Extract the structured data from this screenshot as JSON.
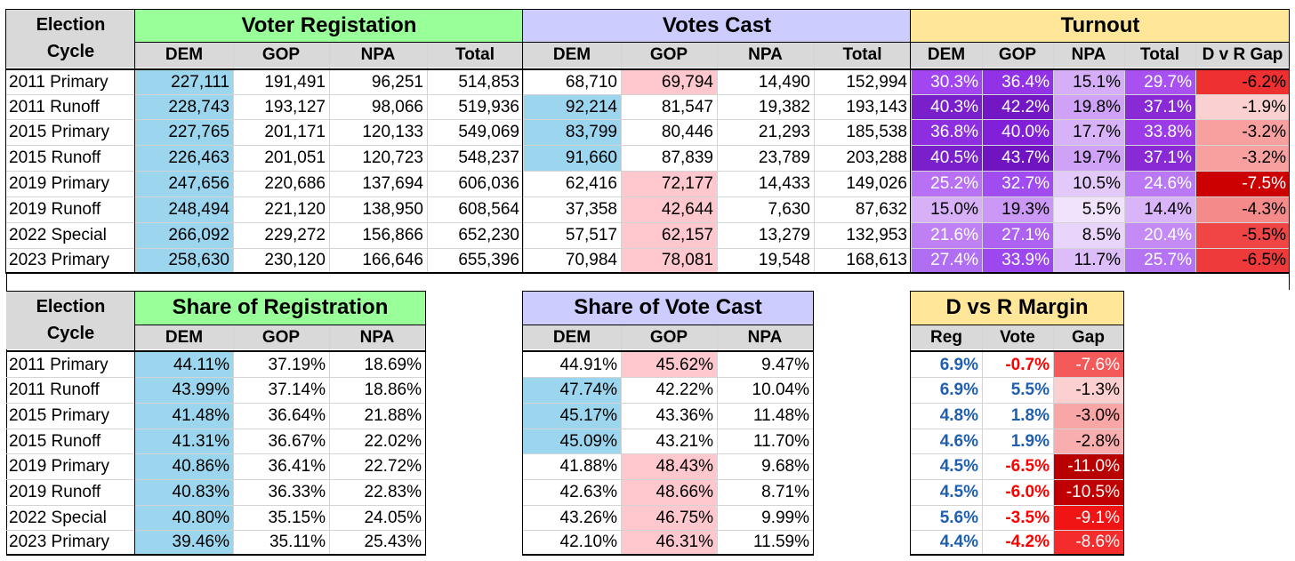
{
  "top": {
    "header_election": [
      "Election",
      "Cycle"
    ],
    "groups": [
      {
        "title": "Voter Registation",
        "color": "#99ff99",
        "cols": [
          "DEM",
          "GOP",
          "NPA",
          "Total"
        ]
      },
      {
        "title": "Votes Cast",
        "color": "#ccccff",
        "cols": [
          "DEM",
          "GOP",
          "NPA",
          "Total"
        ]
      },
      {
        "title": "Turnout",
        "color": "#ffe699",
        "cols": [
          "DEM",
          "GOP",
          "NPA",
          "Total",
          "D v R Gap"
        ]
      }
    ],
    "rows": [
      {
        "label": "2011 Primary",
        "reg": [
          "227,111",
          "191,491",
          "96,251",
          "514,853"
        ],
        "votes": [
          "68,710",
          "69,794",
          "14,490",
          "152,994"
        ],
        "turnout": [
          "30.3%",
          "36.4%",
          "15.1%",
          "29.7%",
          "-6.2%"
        ]
      },
      {
        "label": "2011 Runoff",
        "reg": [
          "228,743",
          "193,127",
          "98,066",
          "519,936"
        ],
        "votes": [
          "92,214",
          "81,547",
          "19,382",
          "193,143"
        ],
        "turnout": [
          "40.3%",
          "42.2%",
          "19.8%",
          "37.1%",
          "-1.9%"
        ]
      },
      {
        "label": "2015 Primary",
        "reg": [
          "227,765",
          "201,171",
          "120,133",
          "549,069"
        ],
        "votes": [
          "83,799",
          "80,446",
          "21,293",
          "185,538"
        ],
        "turnout": [
          "36.8%",
          "40.0%",
          "17.7%",
          "33.8%",
          "-3.2%"
        ]
      },
      {
        "label": "2015 Runoff",
        "reg": [
          "226,463",
          "201,051",
          "120,723",
          "548,237"
        ],
        "votes": [
          "91,660",
          "87,839",
          "23,789",
          "203,288"
        ],
        "turnout": [
          "40.5%",
          "43.7%",
          "19.7%",
          "37.1%",
          "-3.2%"
        ]
      },
      {
        "label": "2019 Primary",
        "reg": [
          "247,656",
          "220,686",
          "137,694",
          "606,036"
        ],
        "votes": [
          "62,416",
          "72,177",
          "14,433",
          "149,026"
        ],
        "turnout": [
          "25.2%",
          "32.7%",
          "10.5%",
          "24.6%",
          "-7.5%"
        ]
      },
      {
        "label": "2019 Runoff",
        "reg": [
          "248,494",
          "221,120",
          "138,950",
          "608,564"
        ],
        "votes": [
          "37,358",
          "42,644",
          "7,630",
          "87,632"
        ],
        "turnout": [
          "15.0%",
          "19.3%",
          "5.5%",
          "14.4%",
          "-4.3%"
        ]
      },
      {
        "label": "2022 Special",
        "reg": [
          "266,092",
          "229,272",
          "156,866",
          "652,230"
        ],
        "votes": [
          "57,517",
          "62,157",
          "13,279",
          "132,953"
        ],
        "turnout": [
          "21.6%",
          "27.1%",
          "8.5%",
          "20.4%",
          "-5.5%"
        ]
      },
      {
        "label": "2023 Primary",
        "reg": [
          "258,630",
          "230,120",
          "166,646",
          "655,396"
        ],
        "votes": [
          "70,984",
          "78,081",
          "19,548",
          "168,613"
        ],
        "turnout": [
          "27.4%",
          "33.9%",
          "11.7%",
          "25.7%",
          "-6.5%"
        ]
      }
    ],
    "reg_dem_bg": "#9bd5ee",
    "votes_highlight": [
      [
        "pink",
        ""
      ],
      [
        "blue",
        ""
      ],
      [
        "blue",
        ""
      ],
      [
        "blue",
        ""
      ],
      [
        "pink",
        ""
      ],
      [
        "pink",
        ""
      ],
      [
        "pink",
        ""
      ],
      [
        "pink",
        ""
      ]
    ],
    "turnout_bg": [
      [
        "#a146f0",
        "#9232e6",
        "#d6aef8",
        "#a950f0",
        "#ef3030"
      ],
      [
        "#7a1fcc",
        "#7317c5",
        "#cfa2f7",
        "#8a2ad6",
        "#fbd0d0"
      ],
      [
        "#8d2fe0",
        "#821fd8",
        "#d8b2f8",
        "#9b3ae6",
        "#f8a0a0"
      ],
      [
        "#7a1fcc",
        "#6f14c0",
        "#cfa2f7",
        "#8a2ad6",
        "#f8a0a0"
      ],
      [
        "#b870f4",
        "#a04cf0",
        "#e3c9fa",
        "#bb78f4",
        "#cc0000"
      ],
      [
        "#d8b0f8",
        "#cb98f6",
        "#f1e3fc",
        "#dab4f8",
        "#f58a8a"
      ],
      [
        "#bf80f5",
        "#ae62f2",
        "#e9d4fb",
        "#c48af6",
        "#ef4545"
      ],
      [
        "#b06ef3",
        "#9d48ef",
        "#dcbcf9",
        "#b574f4",
        "#ee3a3a"
      ]
    ]
  },
  "bottom": {
    "share_reg": {
      "title": "Share of Registration",
      "color": "#99ff99",
      "cols": [
        "DEM",
        "GOP",
        "NPA"
      ],
      "rows": [
        [
          "44.11%",
          "37.19%",
          "18.69%"
        ],
        [
          "43.99%",
          "37.14%",
          "18.86%"
        ],
        [
          "41.48%",
          "36.64%",
          "21.88%"
        ],
        [
          "41.31%",
          "36.67%",
          "22.02%"
        ],
        [
          "40.86%",
          "36.41%",
          "22.72%"
        ],
        [
          "40.83%",
          "36.33%",
          "22.83%"
        ],
        [
          "40.80%",
          "35.15%",
          "24.05%"
        ],
        [
          "39.46%",
          "35.11%",
          "25.43%"
        ]
      ]
    },
    "share_vote": {
      "title": "Share of Vote Cast",
      "color": "#ccccff",
      "cols": [
        "DEM",
        "GOP",
        "NPA"
      ],
      "rows": [
        [
          "44.91%",
          "45.62%",
          "9.47%"
        ],
        [
          "47.74%",
          "42.22%",
          "10.04%"
        ],
        [
          "45.17%",
          "43.36%",
          "11.48%"
        ],
        [
          "45.09%",
          "43.21%",
          "11.70%"
        ],
        [
          "41.88%",
          "48.43%",
          "9.68%"
        ],
        [
          "42.63%",
          "48.66%",
          "8.71%"
        ],
        [
          "43.26%",
          "46.75%",
          "9.99%"
        ],
        [
          "42.10%",
          "46.31%",
          "11.59%"
        ]
      ]
    },
    "margin": {
      "title": "D vs R Margin",
      "color": "#ffe699",
      "cols": [
        "Reg",
        "Vote",
        "Gap"
      ],
      "rows": [
        [
          "6.9%",
          "-0.7%",
          "-7.6%"
        ],
        [
          "6.9%",
          "5.5%",
          "-1.3%"
        ],
        [
          "4.8%",
          "1.8%",
          "-3.0%"
        ],
        [
          "4.6%",
          "1.9%",
          "-2.8%"
        ],
        [
          "4.5%",
          "-6.5%",
          "-11.0%"
        ],
        [
          "4.5%",
          "-6.0%",
          "-10.5%"
        ],
        [
          "5.6%",
          "-3.5%",
          "-9.1%"
        ],
        [
          "4.4%",
          "-4.2%",
          "-8.6%"
        ]
      ],
      "gap_bg": [
        "#f55a5a",
        "#fcd0d0",
        "#f8a6a6",
        "#f8aeae",
        "#b80000",
        "#c00000",
        "#f01414",
        "#f42c2c"
      ],
      "reg_color": "#1f5fb0",
      "neg_color": "#ff0000"
    },
    "labels": [
      "2011 Primary",
      "2011 Runoff",
      "2015 Primary",
      "2015 Runoff",
      "2019 Primary",
      "2019 Runoff",
      "2022 Special",
      "2023 Primary"
    ]
  }
}
